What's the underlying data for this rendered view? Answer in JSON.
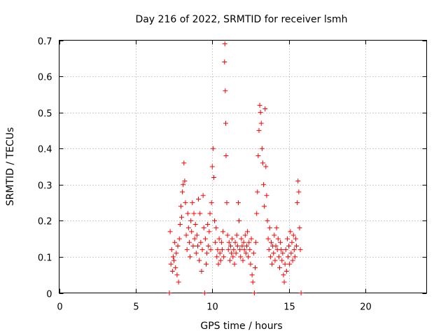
{
  "chart_data": {
    "type": "scatter",
    "title": "Day 216 of 2022, SRMTID for receiver lsmh",
    "xlabel": "GPS time / hours",
    "ylabel": "SRMTID / TECUs",
    "xlim": [
      0,
      24
    ],
    "ylim": [
      0,
      0.7
    ],
    "xticks": [
      0,
      5,
      10,
      15,
      20
    ],
    "yticks": [
      0,
      0.1,
      0.2,
      0.3,
      0.4,
      0.5,
      0.6,
      0.7
    ],
    "grid": true,
    "marker": "plus",
    "color": "#ff0000",
    "series": [
      {
        "name": "SRMTID",
        "points": [
          [
            7.2,
            0.0
          ],
          [
            7.25,
            0.17
          ],
          [
            7.3,
            0.08
          ],
          [
            7.35,
            0.12
          ],
          [
            7.4,
            0.06
          ],
          [
            7.45,
            0.1
          ],
          [
            7.5,
            0.09
          ],
          [
            7.55,
            0.14
          ],
          [
            7.6,
            0.07
          ],
          [
            7.65,
            0.11
          ],
          [
            7.7,
            0.05
          ],
          [
            7.75,
            0.13
          ],
          [
            7.8,
            0.03
          ],
          [
            7.85,
            0.15
          ],
          [
            7.9,
            0.19
          ],
          [
            7.95,
            0.24
          ],
          [
            8.0,
            0.21
          ],
          [
            8.05,
            0.28
          ],
          [
            8.1,
            0.3
          ],
          [
            8.15,
            0.36
          ],
          [
            8.2,
            0.31
          ],
          [
            8.25,
            0.25
          ],
          [
            8.3,
            0.16
          ],
          [
            8.35,
            0.12
          ],
          [
            8.4,
            0.22
          ],
          [
            8.45,
            0.18
          ],
          [
            8.5,
            0.14
          ],
          [
            8.55,
            0.1
          ],
          [
            8.6,
            0.2
          ],
          [
            8.65,
            0.17
          ],
          [
            8.7,
            0.25
          ],
          [
            8.75,
            0.13
          ],
          [
            8.8,
            0.22
          ],
          [
            8.85,
            0.15
          ],
          [
            8.9,
            0.19
          ],
          [
            8.95,
            0.11
          ],
          [
            9.0,
            0.16
          ],
          [
            9.05,
            0.13
          ],
          [
            9.1,
            0.26
          ],
          [
            9.15,
            0.09
          ],
          [
            9.2,
            0.22
          ],
          [
            9.25,
            0.14
          ],
          [
            9.3,
            0.06
          ],
          [
            9.35,
            0.12
          ],
          [
            9.4,
            0.27
          ],
          [
            9.45,
            0.18
          ],
          [
            9.5,
            0.0
          ],
          [
            9.55,
            0.15
          ],
          [
            9.6,
            0.08
          ],
          [
            9.65,
            0.11
          ],
          [
            9.7,
            0.19
          ],
          [
            9.75,
            0.13
          ],
          [
            9.8,
            0.17
          ],
          [
            9.85,
            0.22
          ],
          [
            9.9,
            0.12
          ],
          [
            9.95,
            0.25
          ],
          [
            10.0,
            0.35
          ],
          [
            10.05,
            0.4
          ],
          [
            10.1,
            0.32
          ],
          [
            10.15,
            0.2
          ],
          [
            10.2,
            0.14
          ],
          [
            10.25,
            0.18
          ],
          [
            10.3,
            0.1
          ],
          [
            10.35,
            0.12
          ],
          [
            10.4,
            0.08
          ],
          [
            10.45,
            0.15
          ],
          [
            10.5,
            0.11
          ],
          [
            10.55,
            0.09
          ],
          [
            10.6,
            0.14
          ],
          [
            10.65,
            0.12
          ],
          [
            10.7,
            0.17
          ],
          [
            10.75,
            0.1
          ],
          [
            10.8,
            0.64
          ],
          [
            10.82,
            0.69
          ],
          [
            10.85,
            0.56
          ],
          [
            10.88,
            0.47
          ],
          [
            10.9,
            0.38
          ],
          [
            10.95,
            0.25
          ],
          [
            11.0,
            0.16
          ],
          [
            11.05,
            0.12
          ],
          [
            11.1,
            0.14
          ],
          [
            11.15,
            0.09
          ],
          [
            11.2,
            0.13
          ],
          [
            11.25,
            0.11
          ],
          [
            11.3,
            0.15
          ],
          [
            11.35,
            0.1
          ],
          [
            11.4,
            0.12
          ],
          [
            11.45,
            0.08
          ],
          [
            11.5,
            0.14
          ],
          [
            11.55,
            0.11
          ],
          [
            11.6,
            0.16
          ],
          [
            11.65,
            0.13
          ],
          [
            11.7,
            0.25
          ],
          [
            11.75,
            0.2
          ],
          [
            11.8,
            0.12
          ],
          [
            11.85,
            0.1
          ],
          [
            11.9,
            0.15
          ],
          [
            11.95,
            0.13
          ],
          [
            12.0,
            0.09
          ],
          [
            12.05,
            0.14
          ],
          [
            12.1,
            0.12
          ],
          [
            12.15,
            0.16
          ],
          [
            12.2,
            0.11
          ],
          [
            12.25,
            0.13
          ],
          [
            12.3,
            0.17
          ],
          [
            12.35,
            0.1
          ],
          [
            12.4,
            0.14
          ],
          [
            12.45,
            0.12
          ],
          [
            12.5,
            0.08
          ],
          [
            12.55,
            0.15
          ],
          [
            12.6,
            0.05
          ],
          [
            12.65,
            0.03
          ],
          [
            12.7,
            0.11
          ],
          [
            12.75,
            0.0
          ],
          [
            12.8,
            0.07
          ],
          [
            12.85,
            0.14
          ],
          [
            12.9,
            0.22
          ],
          [
            12.95,
            0.28
          ],
          [
            13.0,
            0.38
          ],
          [
            13.05,
            0.45
          ],
          [
            13.1,
            0.52
          ],
          [
            13.15,
            0.5
          ],
          [
            13.2,
            0.47
          ],
          [
            13.25,
            0.4
          ],
          [
            13.3,
            0.36
          ],
          [
            13.35,
            0.3
          ],
          [
            13.4,
            0.24
          ],
          [
            13.45,
            0.51
          ],
          [
            13.5,
            0.35
          ],
          [
            13.55,
            0.27
          ],
          [
            13.6,
            0.2
          ],
          [
            13.65,
            0.15
          ],
          [
            13.7,
            0.12
          ],
          [
            13.75,
            0.18
          ],
          [
            13.8,
            0.1
          ],
          [
            13.85,
            0.14
          ],
          [
            13.9,
            0.08
          ],
          [
            13.95,
            0.13
          ],
          [
            14.0,
            0.11
          ],
          [
            14.05,
            0.16
          ],
          [
            14.1,
            0.09
          ],
          [
            14.15,
            0.13
          ],
          [
            14.2,
            0.18
          ],
          [
            14.25,
            0.12
          ],
          [
            14.3,
            0.15
          ],
          [
            14.35,
            0.1
          ],
          [
            14.4,
            0.07
          ],
          [
            14.45,
            0.14
          ],
          [
            14.5,
            0.12
          ],
          [
            14.55,
            0.09
          ],
          [
            14.6,
            0.11
          ],
          [
            14.65,
            0.05
          ],
          [
            14.7,
            0.03
          ],
          [
            14.75,
            0.08
          ],
          [
            14.8,
            0.12
          ],
          [
            14.85,
            0.06
          ],
          [
            14.9,
            0.15
          ],
          [
            14.95,
            0.1
          ],
          [
            15.0,
            0.13
          ],
          [
            15.05,
            0.08
          ],
          [
            15.1,
            0.17
          ],
          [
            15.15,
            0.11
          ],
          [
            15.2,
            0.14
          ],
          [
            15.25,
            0.09
          ],
          [
            15.3,
            0.16
          ],
          [
            15.35,
            0.12
          ],
          [
            15.4,
            0.1
          ],
          [
            15.45,
            0.15
          ],
          [
            15.5,
            0.13
          ],
          [
            15.55,
            0.25
          ],
          [
            15.6,
            0.31
          ],
          [
            15.65,
            0.28
          ],
          [
            15.7,
            0.18
          ],
          [
            15.75,
            0.12
          ],
          [
            15.8,
            0.0
          ]
        ]
      }
    ]
  }
}
